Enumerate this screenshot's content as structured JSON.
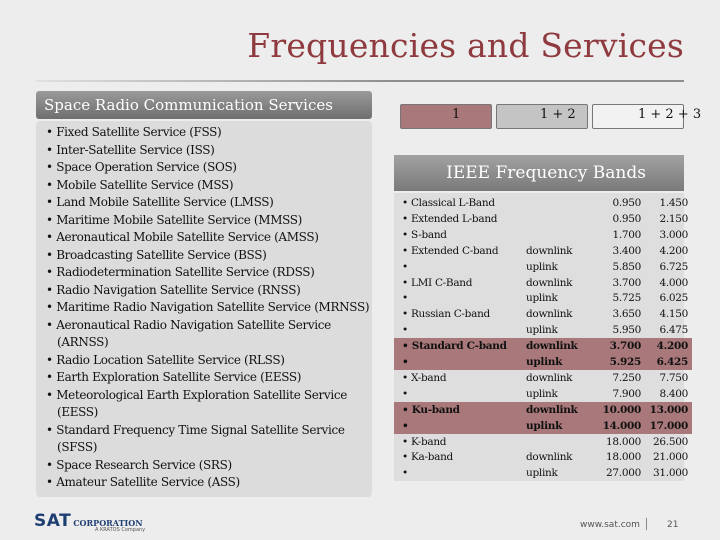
{
  "title": "Frequencies and Services",
  "left_header": "Space Radio Communication Services",
  "services": [
    "Fixed Satellite Service (FSS)",
    "Inter-Satellite Service (ISS)",
    "Space Operation Service (SOS)",
    "Mobile Satellite Service (MSS)",
    "Land Mobile Satellite Service (LMSS)",
    "Maritime Mobile Satellite Service (MMSS)",
    "Aeronautical Mobile Satellite Service (AMSS)",
    "Broadcasting Satellite Service (BSS)",
    "Radiodetermination Satellite Service (RDSS)",
    "Radio Navigation Satellite Service (RNSS)",
    "Maritime Radio Navigation Satellite Service (MRNSS)",
    "Aeronautical Radio Navigation Satellite Service (ARNSS)",
    "Radio Location Satellite Service (RLSS)",
    "Earth Exploration Satellite Service (EESS)",
    "Meteorological Earth Exploration Satellite Service (EESS)",
    "Standard Frequency Time Signal Satellite Service (SFSS)",
    "Space Research Service (SRS)",
    "Amateur Satellite Service (ASS)"
  ],
  "legend": [
    {
      "label": "1",
      "color": "#a9787a"
    },
    {
      "label": "1 + 2",
      "color": "#c4c4c4"
    },
    {
      "label": "1 + 2 + 3",
      "color": "#f2f2f2"
    }
  ],
  "right_header": "IEEE Frequency Bands",
  "bands": [
    {
      "name": "Classical L-Band",
      "link": "",
      "lo": "0.950",
      "hi": "1.450"
    },
    {
      "name": "Extended L-band",
      "link": "",
      "lo": "0.950",
      "hi": "2.150"
    },
    {
      "name": "S-band",
      "link": "",
      "lo": "1.700",
      "hi": "3.000"
    },
    {
      "name": "Extended C-band",
      "link": "downlink",
      "lo": "3.400",
      "hi": "4.200"
    },
    {
      "name": "",
      "link": "uplink",
      "lo": "5.850",
      "hi": "6.725"
    },
    {
      "name": "LMI C-Band",
      "link": "downlink",
      "lo": "3.700",
      "hi": "4.000"
    },
    {
      "name": "",
      "link": "uplink",
      "lo": "5.725",
      "hi": "6.025"
    },
    {
      "name": "Russian C-band",
      "link": "downlink",
      "lo": "3.650",
      "hi": "4.150"
    },
    {
      "name": "",
      "link": "uplink",
      "lo": "5.950",
      "hi": "6.475"
    },
    {
      "name": "Standard C-band",
      "link": "downlink",
      "lo": "3.700",
      "hi": "4.200"
    },
    {
      "name": "",
      "link": "uplink",
      "lo": "5.925",
      "hi": "6.425"
    },
    {
      "name": "X-band",
      "link": "downlink",
      "lo": "7.250",
      "hi": "7.750"
    },
    {
      "name": "",
      "link": "uplink",
      "lo": "7.900",
      "hi": "8.400"
    },
    {
      "name": "Ku-band",
      "link": "downlink",
      "lo": "10.000",
      "hi": "13.000"
    },
    {
      "name": "",
      "link": "uplink",
      "lo": "14.000",
      "hi": "17.000"
    },
    {
      "name": "K-band",
      "link": "",
      "lo": "18.000",
      "hi": "26.500"
    },
    {
      "name": "Ka-band",
      "link": "downlink",
      "lo": "18.000",
      "hi": "21.000"
    },
    {
      "name": "",
      "link": "uplink",
      "lo": "27.000",
      "hi": "31.000"
    }
  ],
  "footer": {
    "logo_main": "SAT",
    "logo_sub": "CORPORATION",
    "logo_tag": "A KRATOS Company",
    "url": "www.sat.com",
    "page": "21"
  }
}
